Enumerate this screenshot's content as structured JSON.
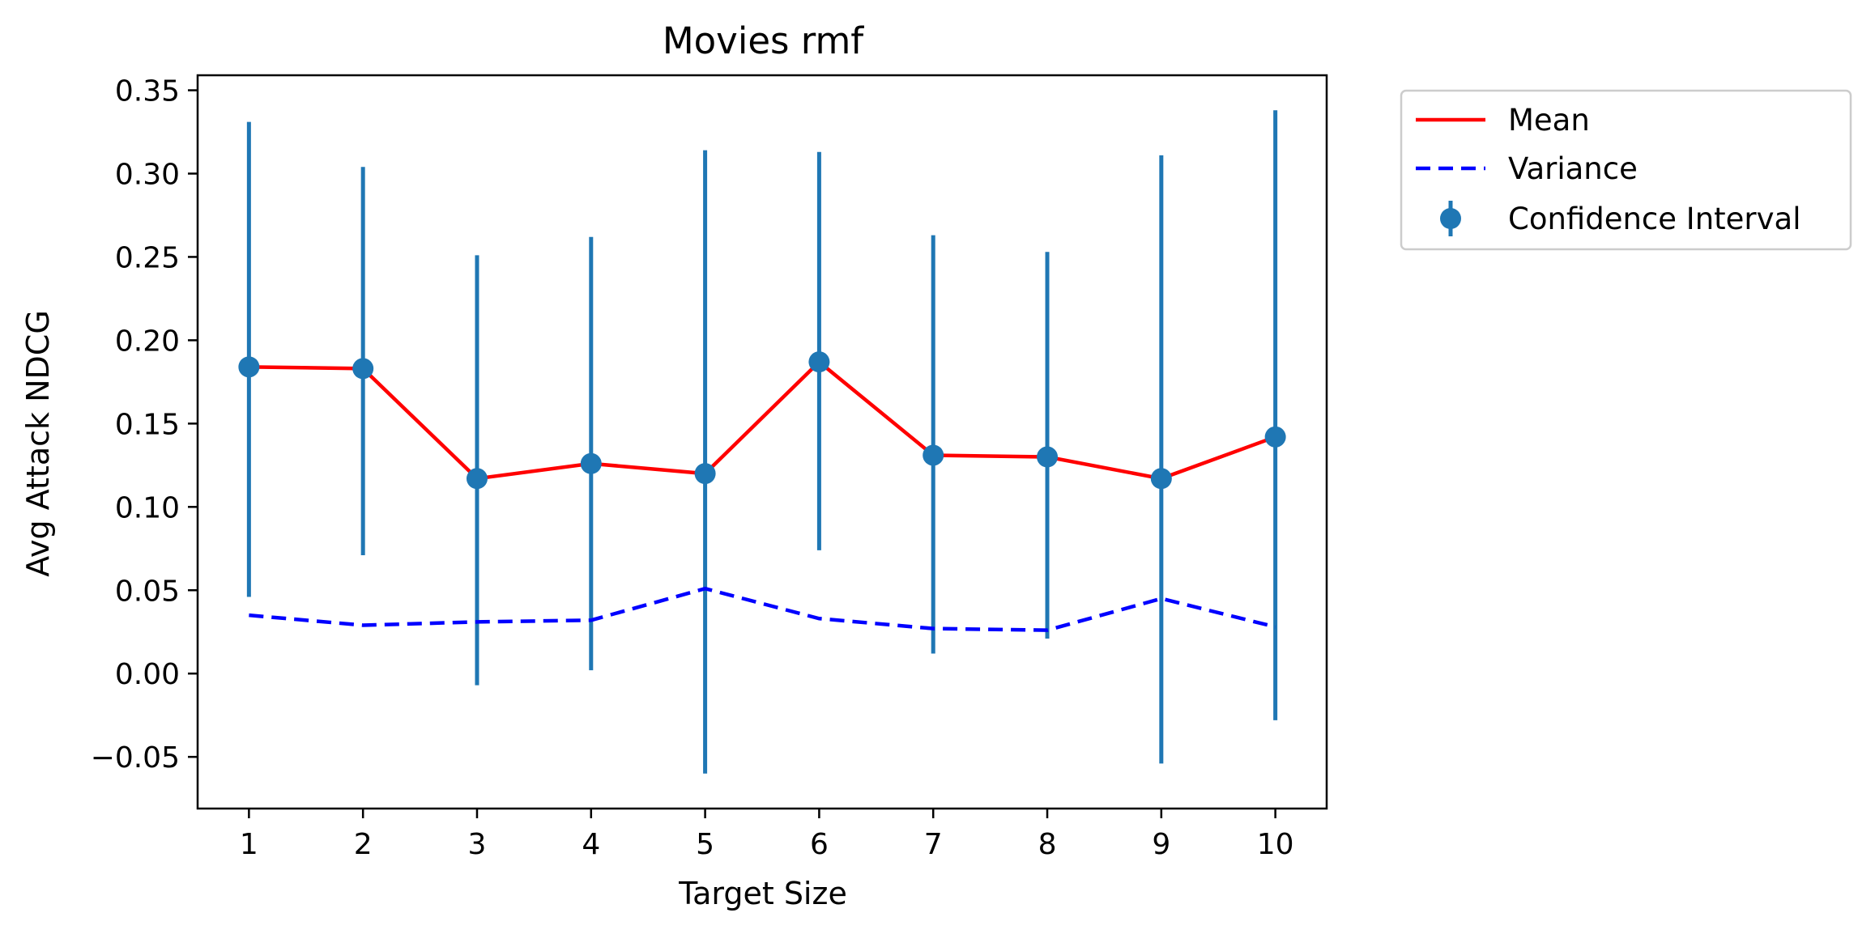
{
  "chart_data": {
    "type": "line",
    "title": "Movies rmf",
    "xlabel": "Target Size",
    "ylabel": "Avg Attack NDCG",
    "xlim": [
      0.55,
      10.45
    ],
    "ylim": [
      -0.081,
      0.359
    ],
    "x": [
      1,
      2,
      3,
      4,
      5,
      6,
      7,
      8,
      9,
      10
    ],
    "x_ticks": [
      "1",
      "2",
      "3",
      "4",
      "5",
      "6",
      "7",
      "8",
      "9",
      "10"
    ],
    "y_ticks": [
      {
        "value": 0.35,
        "label": "0.35"
      },
      {
        "value": 0.3,
        "label": "0.30"
      },
      {
        "value": 0.25,
        "label": "0.25"
      },
      {
        "value": 0.2,
        "label": "0.20"
      },
      {
        "value": 0.15,
        "label": "0.15"
      },
      {
        "value": 0.1,
        "label": "0.10"
      },
      {
        "value": 0.05,
        "label": "0.05"
      },
      {
        "value": 0.0,
        "label": "0.00"
      },
      {
        "value": -0.05,
        "label": "−0.05"
      }
    ],
    "series": [
      {
        "name": "Mean",
        "style": "solid",
        "color": "#ff0000",
        "values": [
          0.184,
          0.183,
          0.117,
          0.126,
          0.12,
          0.187,
          0.131,
          0.13,
          0.117,
          0.142
        ]
      },
      {
        "name": "Variance",
        "style": "dashed",
        "color": "#0000ff",
        "values": [
          0.035,
          0.029,
          0.031,
          0.032,
          0.051,
          0.033,
          0.027,
          0.026,
          0.045,
          0.028
        ]
      },
      {
        "name": "Confidence Interval",
        "style": "errorbar",
        "color": "#1f77b4",
        "values": [
          0.184,
          0.183,
          0.117,
          0.126,
          0.12,
          0.187,
          0.131,
          0.13,
          0.117,
          0.142
        ],
        "lower": [
          0.046,
          0.071,
          -0.007,
          0.002,
          -0.06,
          0.074,
          0.012,
          0.021,
          -0.054,
          -0.028
        ],
        "upper": [
          0.331,
          0.304,
          0.251,
          0.262,
          0.314,
          0.313,
          0.263,
          0.253,
          0.311,
          0.338
        ]
      }
    ],
    "grid": false,
    "legend": {
      "placement": "outside-top-right",
      "entries": [
        "Mean",
        "Variance",
        "Confidence Interval"
      ]
    }
  }
}
